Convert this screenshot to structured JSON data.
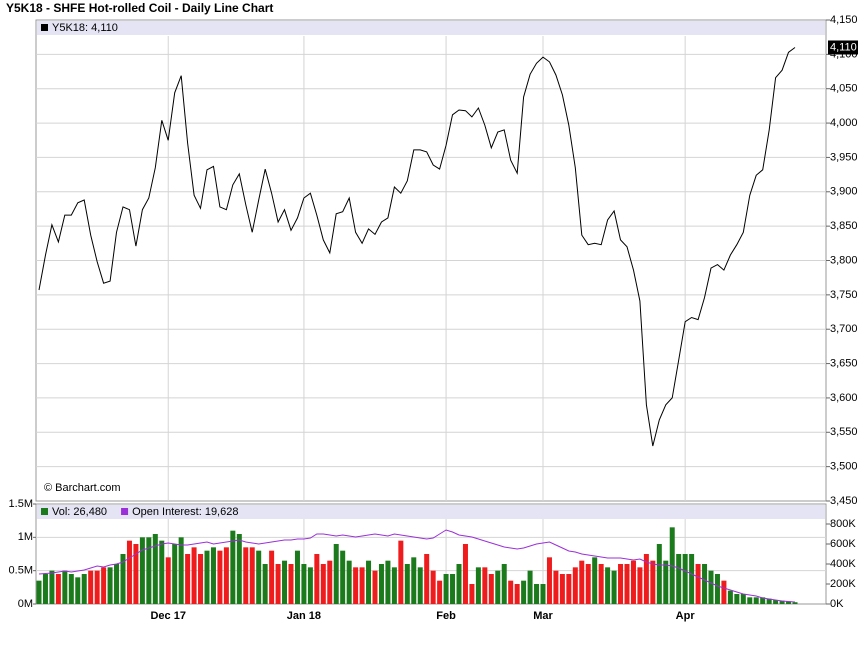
{
  "chart_data": [
    {
      "type": "line",
      "title": "Y5K18 - SHFE Hot-rolled Coil - Daily Line Chart",
      "annotation": "© Barchart.com",
      "series": [
        {
          "name": "Y5K18: 4,110",
          "color": "#000000",
          "last_value_label": "4,110",
          "values": [
            3757,
            3808,
            3852,
            3827,
            3866,
            3866,
            3884,
            3888,
            3837,
            3798,
            3767,
            3770,
            3841,
            3878,
            3874,
            3821,
            3874,
            3891,
            3935,
            4004,
            3975,
            4044,
            4069,
            3971,
            3895,
            3876,
            3932,
            3937,
            3878,
            3874,
            3910,
            3926,
            3881,
            3841,
            3888,
            3933,
            3898,
            3856,
            3874,
            3844,
            3862,
            3891,
            3898,
            3866,
            3830,
            3811,
            3868,
            3871,
            3891,
            3841,
            3825,
            3846,
            3838,
            3856,
            3862,
            3907,
            3898,
            3916,
            3961,
            3961,
            3958,
            3939,
            3933,
            3968,
            4012,
            4019,
            4018,
            4009,
            4022,
            3997,
            3964,
            3987,
            3990,
            3946,
            3927,
            4038,
            4071,
            4087,
            4096,
            4089,
            4070,
            4041,
            3997,
            3935,
            3837,
            3823,
            3825,
            3823,
            3859,
            3872,
            3830,
            3820,
            3786,
            3741,
            3590,
            3530,
            3568,
            3590,
            3600,
            3655,
            3711,
            3717,
            3714,
            3746,
            3789,
            3794,
            3786,
            3808,
            3823,
            3841,
            3895,
            3924,
            3932,
            3990,
            4066,
            4077,
            4103,
            4110
          ]
        }
      ],
      "ylim": [
        3450,
        4150
      ],
      "yticks": [
        {
          "value": 3450,
          "label": "3,450"
        },
        {
          "value": 3500,
          "label": "3,500"
        },
        {
          "value": 3550,
          "label": "3,550"
        },
        {
          "value": 3600,
          "label": "3,600"
        },
        {
          "value": 3650,
          "label": "3,650"
        },
        {
          "value": 3700,
          "label": "3,700"
        },
        {
          "value": 3750,
          "label": "3,750"
        },
        {
          "value": 3800,
          "label": "3,800"
        },
        {
          "value": 3850,
          "label": "3,850"
        },
        {
          "value": 3900,
          "label": "3,900"
        },
        {
          "value": 3950,
          "label": "3,950"
        },
        {
          "value": 4000,
          "label": "4,000"
        },
        {
          "value": 4050,
          "label": "4,050"
        },
        {
          "value": 4100,
          "label": "4,100"
        },
        {
          "value": 4150,
          "label": "4,150"
        }
      ],
      "grid": true
    },
    {
      "type": "bar",
      "categories": [
        null,
        null,
        null,
        null,
        null,
        null,
        null,
        null,
        null,
        null,
        null,
        null,
        null,
        null,
        null,
        null,
        null,
        null,
        null,
        null,
        "Dec 17",
        null,
        null,
        null,
        null,
        null,
        null,
        null,
        null,
        null,
        null,
        null,
        null,
        null,
        null,
        null,
        null,
        null,
        null,
        null,
        null,
        "Jan 18",
        null,
        null,
        null,
        null,
        null,
        null,
        null,
        null,
        null,
        null,
        null,
        null,
        null,
        null,
        null,
        null,
        null,
        null,
        null,
        null,
        null,
        "Feb",
        null,
        null,
        null,
        null,
        null,
        null,
        null,
        null,
        null,
        null,
        null,
        null,
        null,
        null,
        "Mar",
        null,
        null,
        null,
        null,
        null,
        null,
        null,
        null,
        null,
        null,
        null,
        null,
        null,
        null,
        null,
        null,
        null,
        null,
        null,
        null,
        null,
        "Apr",
        null,
        null,
        null,
        null,
        null,
        null,
        null,
        null,
        null,
        null,
        null,
        null,
        null,
        null,
        null,
        null,
        null
      ],
      "up_color": "#1b7a1b",
      "down_color": "#ee1c1c",
      "series": [
        {
          "name": "Vol: 26,480",
          "color": "#1b7a1b",
          "values": [
            350000,
            450000,
            500000,
            450000,
            500000,
            450000,
            400000,
            450000,
            500000,
            500000,
            550000,
            550000,
            600000,
            750000,
            950000,
            900000,
            1000000,
            1000000,
            1050000,
            950000,
            700000,
            900000,
            1000000,
            750000,
            850000,
            750000,
            800000,
            850000,
            800000,
            850000,
            1100000,
            1050000,
            850000,
            850000,
            800000,
            600000,
            800000,
            600000,
            650000,
            600000,
            800000,
            600000,
            550000,
            750000,
            600000,
            650000,
            900000,
            800000,
            650000,
            550000,
            550000,
            650000,
            500000,
            600000,
            650000,
            550000,
            950000,
            600000,
            700000,
            550000,
            750000,
            500000,
            350000,
            450000,
            450000,
            600000,
            900000,
            300000,
            550000,
            550000,
            450000,
            500000,
            600000,
            350000,
            300000,
            350000,
            500000,
            300000,
            300000,
            700000,
            500000,
            450000,
            450000,
            550000,
            650000,
            600000,
            700000,
            600000,
            550000,
            500000,
            600000,
            600000,
            650000,
            550000,
            750000,
            650000,
            900000,
            650000,
            1150000,
            750000,
            750000,
            750000,
            600000,
            600000,
            500000,
            450000,
            350000,
            200000,
            150000,
            150000,
            100000,
            100000,
            100000,
            80000,
            60000,
            50000,
            40000,
            26480
          ]
        },
        {
          "name": "Open Interest: 19,628",
          "color": "#9b30d9",
          "axis": "y2",
          "values": [
            300000,
            305000,
            310000,
            320000,
            330000,
            320000,
            330000,
            340000,
            360000,
            380000,
            370000,
            390000,
            400000,
            420000,
            460000,
            500000,
            540000,
            560000,
            580000,
            600000,
            610000,
            600000,
            590000,
            590000,
            600000,
            610000,
            620000,
            600000,
            610000,
            620000,
            630000,
            640000,
            620000,
            610000,
            600000,
            610000,
            620000,
            630000,
            640000,
            640000,
            650000,
            650000,
            660000,
            700000,
            700000,
            690000,
            680000,
            690000,
            680000,
            670000,
            680000,
            690000,
            700000,
            690000,
            680000,
            700000,
            690000,
            680000,
            670000,
            660000,
            650000,
            660000,
            700000,
            740000,
            720000,
            690000,
            680000,
            670000,
            650000,
            630000,
            610000,
            590000,
            570000,
            560000,
            550000,
            560000,
            580000,
            600000,
            610000,
            620000,
            590000,
            560000,
            530000,
            520000,
            500000,
            490000,
            480000,
            470000,
            460000,
            460000,
            460000,
            450000,
            440000,
            450000,
            420000,
            400000,
            390000,
            390000,
            380000,
            360000,
            330000,
            300000,
            270000,
            240000,
            210000,
            180000,
            160000,
            140000,
            120000,
            100000,
            90000,
            80000,
            60000,
            50000,
            40000,
            30000,
            25000,
            19628
          ]
        }
      ],
      "ylim": [
        0,
        1500000
      ],
      "yticks": [
        {
          "value": 0,
          "label": "0M"
        },
        {
          "value": 500000,
          "label": "0.5M"
        },
        {
          "value": 1000000,
          "label": "1M"
        },
        {
          "value": 1500000,
          "label": "1.5M"
        }
      ],
      "y2lim": [
        0,
        1000000
      ],
      "y2ticks": [
        {
          "value": 0,
          "label": "0K"
        },
        {
          "value": 200000,
          "label": "200K"
        },
        {
          "value": 400000,
          "label": "400K"
        },
        {
          "value": 600000,
          "label": "600K"
        },
        {
          "value": 800000,
          "label": "800K"
        }
      ],
      "grid": true
    }
  ]
}
